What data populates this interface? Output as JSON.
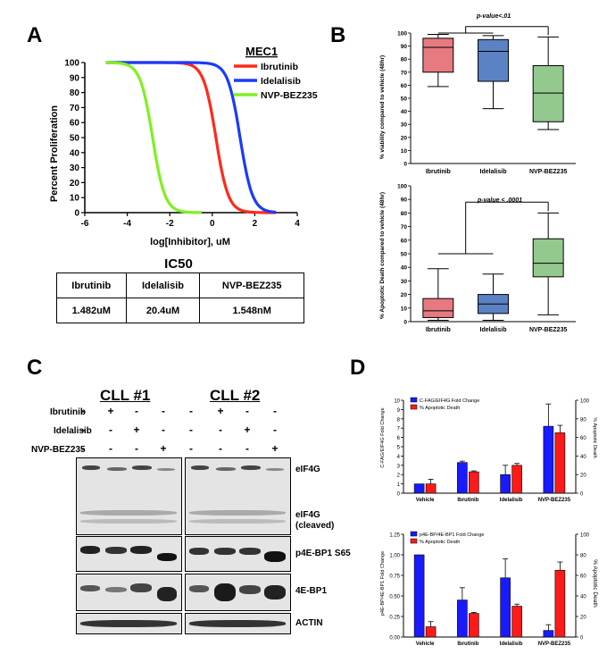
{
  "panelA": {
    "label": "A",
    "legend_title": "MEC1",
    "legend": [
      {
        "name": "Ibrutinib",
        "color": "#ff2a1a"
      },
      {
        "name": "Idelalisib",
        "color": "#1a3aff"
      },
      {
        "name": "NVP-BEZ235",
        "color": "#80f020"
      }
    ],
    "ylabel": "Percent Proliferation",
    "xlabel": "log[Inhibitor], uM",
    "ic50_title": "IC50",
    "ic50_headers": [
      "Ibrutinib",
      "Idelalisib",
      "NVP-BEZ235"
    ],
    "ic50_values": [
      "1.482uM",
      "20.4uM",
      "1.548nM"
    ]
  },
  "panelB": {
    "label": "B",
    "top_ylabel": "% viability compared to vehicle (48hr)",
    "top_pvalue": "p-value<.01",
    "bottom_ylabel": "% Apoptotic Death compared to vehicle (48hr)",
    "bottom_pvalue": "p-value < .0001"
  },
  "panelC": {
    "label": "C",
    "cll1": "CLL #1",
    "cll2": "CLL #2",
    "conditions": [
      "Ibrutinib",
      "Idelalisib",
      "NVP-BEZ235"
    ],
    "signs": [
      [
        "-",
        "+",
        "-",
        "-",
        "-",
        "+",
        "-",
        "-"
      ],
      [
        "-",
        "-",
        "+",
        "-",
        "-",
        "-",
        "+",
        "-"
      ],
      [
        "-",
        "-",
        "-",
        "+",
        "-",
        "-",
        "-",
        "+"
      ]
    ],
    "blot_labels": [
      "eIF4G",
      "eIF4G\n(cleaved)",
      "p4E-BP1 S65",
      "4E-BP1",
      "ACTIN"
    ]
  },
  "panelD": {
    "label": "D",
    "top_ylabel": "C-FAG/EIF4G Fold Change",
    "top_y2label": "% Apoptotic Death",
    "bottom_ylabel": "p4E-BP/4E-BP1 Fold Change",
    "bottom_y2label": "% Apoptotic Death"
  },
  "chart_data": [
    {
      "id": "A-dose-response",
      "type": "line",
      "xlabel": "log[Inhibitor], uM",
      "ylabel": "Percent Proliferation",
      "xlim": [
        -6,
        4
      ],
      "ylim": [
        0,
        100
      ],
      "xticks": [
        -6,
        -4,
        -2,
        0,
        2,
        4
      ],
      "yticks": [
        0,
        10,
        20,
        30,
        40,
        50,
        60,
        70,
        80,
        90,
        100
      ],
      "series": [
        {
          "name": "Ibrutinib",
          "color": "#ff2a1a",
          "logIC50": 0.17,
          "hill": 1.5,
          "xrange": [
            -5,
            3
          ]
        },
        {
          "name": "Idelalisib",
          "color": "#1a3aff",
          "logIC50": 1.31,
          "hill": 1.5,
          "xrange": [
            -5,
            3
          ]
        },
        {
          "name": "NVP-BEZ235",
          "color": "#80f020",
          "logIC50": -2.81,
          "hill": 1.5,
          "xrange": [
            -5,
            -0.5
          ]
        }
      ]
    },
    {
      "id": "B-viability",
      "type": "box",
      "ylabel": "% viability compared to vehicle (48hr)",
      "ylim": [
        0,
        100
      ],
      "yticks": [
        0,
        10,
        20,
        30,
        40,
        50,
        60,
        70,
        80,
        90,
        100
      ],
      "categories": [
        "Ibrutinib",
        "Idelalisib",
        "NVP-BEZ235"
      ],
      "boxes": [
        {
          "min": 59,
          "q1": 70,
          "median": 89,
          "q3": 96,
          "max": 99,
          "color": "#e77a80"
        },
        {
          "min": 42,
          "q1": 63,
          "median": 86,
          "q3": 95,
          "max": 98,
          "color": "#5b82c4"
        },
        {
          "min": 26,
          "q1": 32,
          "median": 54,
          "q3": 75,
          "max": 97,
          "color": "#93c98f"
        }
      ],
      "annotation": "p-value<.01"
    },
    {
      "id": "B-apoptosis",
      "type": "box",
      "ylabel": "% Apoptotic Death compared to vehicle (48hr)",
      "ylim": [
        0,
        100
      ],
      "yticks": [
        0,
        10,
        20,
        30,
        40,
        50,
        60,
        70,
        80,
        90,
        100
      ],
      "categories": [
        "Ibrutinib",
        "Idelalisib",
        "NVP-BEZ235"
      ],
      "boxes": [
        {
          "min": 1,
          "q1": 3,
          "median": 8,
          "q3": 17,
          "max": 39,
          "color": "#e77a80"
        },
        {
          "min": 1,
          "q1": 6,
          "median": 13,
          "q3": 20,
          "max": 35,
          "color": "#5b82c4"
        },
        {
          "min": 5,
          "q1": 33,
          "median": 43,
          "q3": 61,
          "max": 80,
          "color": "#93c98f"
        }
      ],
      "annotation": "p-value < .0001"
    },
    {
      "id": "D-eIF4G",
      "type": "bar",
      "categories": [
        "Vehicle",
        "Ibrutinib",
        "Idelalisib",
        "NVP-BEZ235"
      ],
      "ylabel": "C-FAG/EIF4G Fold Change",
      "y2label": "% Apoptotic Death",
      "ylim": [
        0,
        10
      ],
      "y2lim": [
        0,
        100
      ],
      "yticks": [
        0,
        1,
        2,
        3,
        4,
        5,
        6,
        7,
        8,
        9,
        10
      ],
      "y2ticks": [
        0,
        20,
        40,
        60,
        80,
        100
      ],
      "series": [
        {
          "name": "C-FAG/EIF4G Fold Change",
          "color": "#1a1aff",
          "values": [
            1.0,
            3.3,
            2.0,
            7.2
          ],
          "errors": [
            0,
            0.15,
            1.0,
            2.4
          ]
        },
        {
          "name": "% Apoptotic Death",
          "color": "#ff1a1a",
          "axis": "right",
          "values": [
            10,
            23,
            30,
            65
          ],
          "errors": [
            5,
            1,
            2,
            8
          ]
        }
      ]
    },
    {
      "id": "D-p4EBP1",
      "type": "bar",
      "categories": [
        "Vehicle",
        "Ibrutinib",
        "Idelalisib",
        "NVP-BEZ235"
      ],
      "ylabel": "p4E-BP/4E-BP1 Fold Change",
      "y2label": "% Apoptotic Death",
      "ylim": [
        0,
        1.25
      ],
      "y2lim": [
        0,
        100
      ],
      "yticks": [
        0,
        0.25,
        0.5,
        0.75,
        1.0,
        1.25
      ],
      "ytick_labels": [
        "0.00",
        "0.25",
        "0.50",
        "0.75",
        "1.00",
        "1.25"
      ],
      "y2ticks": [
        0,
        20,
        40,
        60,
        80,
        100
      ],
      "series": [
        {
          "name": "p4E-BP/4E-BP1 Fold Change",
          "color": "#1a1aff",
          "values": [
            1.0,
            0.45,
            0.72,
            0.08
          ],
          "errors": [
            0,
            0.15,
            0.23,
            0.07
          ]
        },
        {
          "name": "% Apoptotic Death",
          "color": "#ff1a1a",
          "axis": "right",
          "values": [
            10,
            23,
            30,
            65
          ],
          "errors": [
            5,
            1,
            2,
            8
          ]
        }
      ]
    }
  ]
}
